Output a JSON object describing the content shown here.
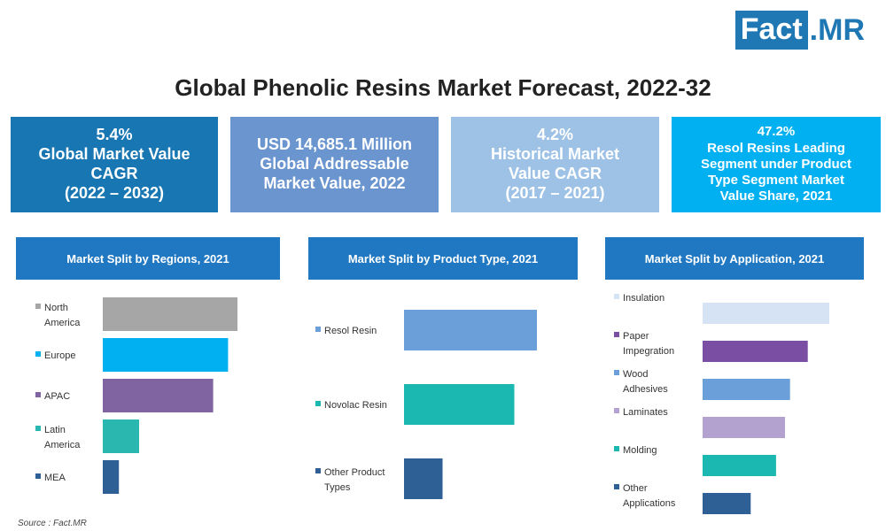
{
  "logo": {
    "brand": "Fact",
    "suffix": ".MR"
  },
  "title": "Global Phenolic Resins Market Forecast, 2022-32",
  "kpis": [
    {
      "lines": [
        "5.4%",
        "Global Market Value",
        "CAGR",
        "(2022 – 2032)"
      ]
    },
    {
      "lines": [
        "USD 14,685.1 Million",
        "Global Addressable",
        "Market Value, 2022"
      ]
    },
    {
      "lines": [
        "4.2%",
        "Historical Market",
        "Value CAGR",
        "(2017 – 2021)"
      ]
    },
    {
      "lines": [
        "47.2%",
        "Resol Resins Leading",
        "Segment under Product",
        "Type Segment Market",
        "Value Share, 2021"
      ]
    }
  ],
  "panels": [
    {
      "header": "Market Split by Regions, 2021"
    },
    {
      "header": "Market Split by Product Type, 2021"
    },
    {
      "header": "Market Split by Application, 2021"
    }
  ],
  "chart_data": [
    {
      "type": "bar",
      "orientation": "horizontal",
      "title": "Market Split by Regions, 2021",
      "categories": [
        [
          "North",
          "America"
        ],
        [
          "Europe"
        ],
        [
          "APAC"
        ],
        [
          "Latin",
          "America"
        ],
        [
          "MEA"
        ]
      ],
      "values": [
        1.0,
        0.93,
        0.82,
        0.27,
        0.12
      ],
      "colors": [
        "#a6a6a6",
        "#00b0f0",
        "#8064a2",
        "#2ab7b0",
        "#2e5f95"
      ],
      "value_unit": "relative share (bar length, unlabeled)"
    },
    {
      "type": "bar",
      "orientation": "horizontal",
      "title": "Market Split by Product Type, 2021",
      "categories": [
        [
          "Resol Resin"
        ],
        [
          "Novolac Resin"
        ],
        [
          "Other Product",
          "Types"
        ]
      ],
      "values": [
        1.0,
        0.83,
        0.29
      ],
      "colors": [
        "#6a9fd9",
        "#1ab8b0",
        "#2e5f95"
      ],
      "value_unit": "relative share (bar length, unlabeled)"
    },
    {
      "type": "bar",
      "orientation": "horizontal",
      "title": "Market Split by Application, 2021",
      "categories": [
        [
          "Insulation"
        ],
        [
          "Paper",
          "Impegration"
        ],
        [
          "Wood",
          "Adhesives"
        ],
        [
          "Laminates"
        ],
        [
          "Molding"
        ],
        [
          "Other",
          "Applications"
        ]
      ],
      "values": [
        1.0,
        0.83,
        0.69,
        0.65,
        0.58,
        0.38
      ],
      "colors": [
        "#d5e3f4",
        "#7a4ea3",
        "#6a9fd9",
        "#b3a2cf",
        "#1ab8b0",
        "#2e5f95"
      ],
      "value_unit": "relative share (bar length, unlabeled)"
    }
  ],
  "source": "Source : Fact.MR"
}
